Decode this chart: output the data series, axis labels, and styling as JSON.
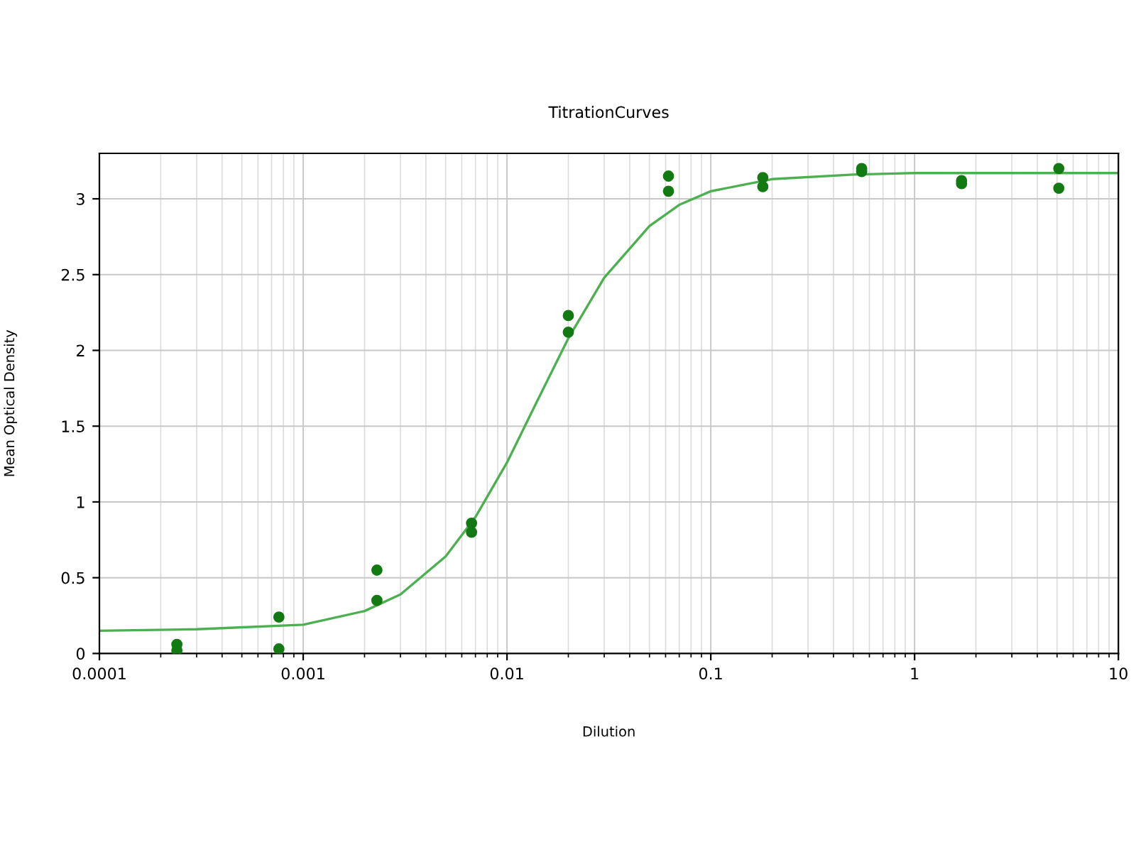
{
  "chart_data": {
    "type": "scatter",
    "title": "TitrationCurves",
    "xlabel": "Dilution",
    "ylabel": "Mean Optical Density",
    "log": "x",
    "xlim": [
      0.0001,
      10
    ],
    "xticks": [
      {
        "value": 0.0001,
        "label": "0.0001"
      },
      {
        "value": 0.001,
        "label": "0.001"
      },
      {
        "value": 0.01,
        "label": "0.01"
      },
      {
        "value": 0.1,
        "label": "0.1"
      },
      {
        "value": 1,
        "label": "1"
      },
      {
        "value": 10,
        "label": "10"
      }
    ],
    "ylim": [
      0,
      3.3
    ],
    "yticks": [
      0,
      0.5,
      1,
      1.5,
      2,
      2.5,
      3
    ],
    "grid": true,
    "legend": false,
    "series": [
      {
        "color": "#137a13",
        "marker": "circle",
        "x": [
          0.00024,
          0.00024,
          0.00076,
          0.00076,
          0.0023,
          0.0023,
          0.0067,
          0.0067,
          0.02,
          0.02,
          0.062,
          0.062,
          0.18,
          0.18,
          0.55,
          0.55,
          1.7,
          1.7,
          5.1,
          5.1
        ],
        "values": [
          0.06,
          0.02,
          0.24,
          0.03,
          0.55,
          0.35,
          0.86,
          0.8,
          2.23,
          2.12,
          3.15,
          3.05,
          3.14,
          3.08,
          3.2,
          3.18,
          3.12,
          3.1,
          3.2,
          3.07
        ]
      },
      {
        "type": "line",
        "color": "#4caf50",
        "marker": "none",
        "x": [
          0.0001,
          0.0003,
          0.001,
          0.002,
          0.003,
          0.005,
          0.007,
          0.01,
          0.014,
          0.02,
          0.03,
          0.05,
          0.07,
          0.1,
          0.2,
          0.5,
          1,
          10
        ],
        "values": [
          0.15,
          0.16,
          0.19,
          0.28,
          0.39,
          0.64,
          0.9,
          1.26,
          1.66,
          2.08,
          2.48,
          2.82,
          2.96,
          3.05,
          3.13,
          3.16,
          3.17,
          3.17
        ]
      }
    ]
  }
}
